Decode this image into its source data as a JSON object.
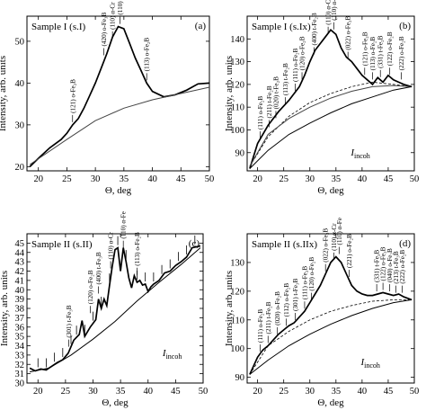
{
  "chart_data": [
    {
      "type": "line",
      "panel": "(a)",
      "title": "Sample I (s.I)",
      "xlabel": "Θ, deg",
      "ylabel": "Intensity, arb. units",
      "xlim": [
        18,
        50
      ],
      "ylim": [
        19,
        56
      ],
      "xticks": [
        20,
        25,
        30,
        35,
        40,
        45,
        50
      ],
      "yticks": [
        20,
        30,
        40,
        50
      ],
      "series": [
        {
          "role": "measured",
          "x": [
            18.5,
            20,
            22,
            24,
            25,
            26,
            27,
            28,
            29,
            30,
            31,
            32,
            33,
            34,
            35,
            36,
            37,
            38,
            39,
            40,
            42,
            44,
            46,
            48,
            50
          ],
          "y": [
            20,
            22,
            24.5,
            26.5,
            28,
            30,
            31.5,
            34,
            37,
            40,
            43.5,
            47,
            51,
            53.5,
            53,
            49.5,
            46,
            43,
            40,
            38,
            36.7,
            37.2,
            38.3,
            39.8,
            40
          ]
        },
        {
          "role": "background",
          "x": [
            18.5,
            25,
            30,
            35,
            40,
            45,
            50
          ],
          "y": [
            20.5,
            26.5,
            31,
            34,
            36,
            37.5,
            39
          ]
        }
      ],
      "annotations": [
        {
          "x": 26,
          "y": 30,
          "text": "(121) o-Fe₂B"
        },
        {
          "x": 31.5,
          "y": 46,
          "text": "(420) o-Fe₃B"
        },
        {
          "x": 33,
          "y": 50,
          "text": "(110) α-Cr"
        },
        {
          "x": 34.3,
          "y": 53.5,
          "text": "(110) α-Fe"
        },
        {
          "x": 39,
          "y": 40,
          "text": "(113) o-Fe₂B"
        }
      ]
    },
    {
      "type": "line",
      "panel": "(b)",
      "title": "Sample I (s.Ix)",
      "xlabel": "Θ, deg",
      "ylabel": "Intensity, arb. units",
      "xlim": [
        18,
        50
      ],
      "ylim": [
        82,
        150
      ],
      "xticks": [
        20,
        25,
        30,
        35,
        40,
        45,
        50
      ],
      "yticks": [
        90,
        100,
        110,
        120,
        130,
        140
      ],
      "incoh_label": "I",
      "incoh_sub": "incoh",
      "series": [
        {
          "role": "measured",
          "x": [
            18.5,
            20,
            22,
            24,
            26,
            28,
            29,
            30,
            31,
            32,
            33,
            34,
            35,
            36,
            37,
            38,
            39,
            40,
            41,
            42,
            43,
            44,
            45,
            46,
            47,
            48,
            49.5
          ],
          "y": [
            83,
            94,
            102,
            108,
            113,
            119,
            124,
            130,
            135,
            138,
            141,
            144,
            142,
            136,
            132,
            130,
            127,
            124,
            122,
            120,
            123,
            121,
            124,
            122,
            121,
            120,
            119
          ]
        },
        {
          "role": "coherent-model",
          "x": [
            18.5,
            22,
            26,
            30,
            34,
            38,
            42,
            46,
            49.5
          ],
          "y": [
            84,
            97,
            106,
            112,
            116,
            119,
            121,
            120,
            119
          ]
        },
        {
          "role": "background",
          "x": [
            18.5,
            22,
            26,
            30,
            34,
            38,
            42,
            46,
            49.5
          ],
          "y": [
            84,
            98,
            105,
            110,
            114,
            117,
            119,
            119.5,
            119
          ]
        },
        {
          "role": "incoherent",
          "x": [
            18.5,
            22,
            26,
            30,
            34,
            38,
            42,
            46,
            49.5
          ],
          "y": [
            83,
            91,
            98,
            103,
            107.5,
            111.5,
            114.5,
            117.5,
            119
          ]
        }
      ],
      "annotations": [
        {
          "x": 20.5,
          "y": 95,
          "text": "(111) o-Fe₂B"
        },
        {
          "x": 22.2,
          "y": 100,
          "text": "(211) t-Fe₂B"
        },
        {
          "x": 23.5,
          "y": 104,
          "text": "(020) t-Fe₂B"
        },
        {
          "x": 25.3,
          "y": 110,
          "text": "(113) t-Fe₂B"
        },
        {
          "x": 27.2,
          "y": 116,
          "text": "(111) o-Fe₂B"
        },
        {
          "x": 28.5,
          "y": 121,
          "text": "(120) o-Fe₂B"
        },
        {
          "x": 30.8,
          "y": 132,
          "text": "(400) t-Fe₂B"
        },
        {
          "x": 33.5,
          "y": 141,
          "text": "(110) α-Cr"
        },
        {
          "x": 34.6,
          "y": 143,
          "text": "(110) α-Fe"
        },
        {
          "x": 37.3,
          "y": 130,
          "text": "(022) o-Fe₂B"
        },
        {
          "x": 40.5,
          "y": 123,
          "text": "(121) o-Fe₂B"
        },
        {
          "x": 42,
          "y": 121,
          "text": "(113) o-Fe₂B"
        },
        {
          "x": 43.5,
          "y": 122,
          "text": "(331) t-Fe₂B"
        },
        {
          "x": 45.3,
          "y": 123,
          "text": "(122) o-Fe₂B"
        },
        {
          "x": 47.5,
          "y": 121,
          "text": "(222) o-Fe₂B"
        }
      ]
    },
    {
      "type": "line",
      "panel": "(c)",
      "title": "Sample II (s.II)",
      "xlabel": "Θ, deg",
      "ylabel": "Intensity, arb. units",
      "xlim": [
        18,
        50
      ],
      "ylim": [
        30,
        46
      ],
      "xticks": [
        20,
        25,
        30,
        35,
        40,
        45,
        50
      ],
      "yticks": [
        30,
        31,
        32,
        33,
        34,
        35,
        36,
        37,
        38,
        39,
        40,
        41,
        42,
        43,
        44,
        45,
        46
      ],
      "yticklabels": [
        30,
        31,
        32,
        33,
        34,
        35,
        36,
        37,
        38,
        39,
        40,
        41,
        42,
        43,
        44,
        45
      ],
      "incoh_label": "I",
      "incoh_sub": "incoh",
      "series": [
        {
          "role": "measured",
          "x": [
            18.5,
            19.5,
            20.5,
            21.5,
            22.5,
            23.5,
            24.5,
            25.5,
            26.5,
            27.5,
            28,
            28.5,
            29.5,
            30.5,
            31,
            31.5,
            32,
            32.5,
            33,
            33.5,
            34,
            34.5,
            35,
            35.5,
            36,
            36.5,
            37,
            37.5,
            38,
            38.5,
            39,
            39.5,
            40,
            40.5,
            41,
            42,
            43,
            44,
            45,
            46,
            47,
            48,
            49.5
          ],
          "y": [
            31.6,
            31.3,
            31.5,
            31.4,
            31.8,
            32.2,
            32.5,
            33.2,
            34.6,
            35.2,
            36.7,
            35,
            36,
            36.8,
            39,
            38,
            39,
            38.3,
            40.5,
            42.5,
            44.3,
            44.5,
            42,
            44.5,
            43,
            41.3,
            40.2,
            41.5,
            40.8,
            41,
            40.5,
            40.6,
            39.8,
            40.3,
            40.6,
            41,
            41.8,
            42,
            42.6,
            43,
            43.5,
            44.5,
            44.7
          ]
        },
        {
          "role": "incoherent",
          "x": [
            18.5,
            22,
            26,
            30,
            34,
            38,
            42,
            46,
            49.5
          ],
          "y": [
            31.2,
            31.6,
            33,
            34.7,
            36.6,
            38.8,
            40.8,
            42.7,
            44.5
          ]
        }
      ],
      "error_bars_at": [
        20,
        21.5,
        23,
        24.5,
        26,
        27,
        28.5,
        30,
        31.5,
        33,
        34.5,
        36,
        38,
        39.5,
        41,
        42.5,
        44,
        45.5,
        47,
        48.5
      ],
      "annotations": [
        {
          "x": 25.6,
          "y": 33.6,
          "text": "(301) t-Fe₃B"
        },
        {
          "x": 29.5,
          "y": 37.2,
          "text": "(120) o-Fe₂B"
        },
        {
          "x": 31,
          "y": 39.3,
          "text": "(400) t-Fe₃B"
        },
        {
          "x": 33.2,
          "y": 42,
          "text": "(110) α-Cr"
        },
        {
          "x": 35.5,
          "y": 44.2,
          "text": "(110) α-Fe"
        },
        {
          "x": 38,
          "y": 41.3,
          "text": "(113) o-Fe₂B"
        }
      ]
    },
    {
      "type": "line",
      "panel": "(d)",
      "title": "Sample II (s.IIx)",
      "xlabel": "Θ, deg",
      "ylabel": "Intensity, arb. units",
      "xlim": [
        18,
        50
      ],
      "ylim": [
        88,
        140
      ],
      "xticks": [
        20,
        25,
        30,
        35,
        40,
        45,
        50
      ],
      "yticks": [
        90,
        100,
        110,
        120,
        130
      ],
      "incoh_label": "I",
      "incoh_sub": "incoh",
      "series": [
        {
          "role": "measured",
          "x": [
            18.5,
            20,
            21,
            22,
            23,
            24,
            25,
            26,
            27,
            28,
            29,
            30,
            31,
            32,
            33,
            34,
            35,
            36,
            37,
            38,
            39,
            40,
            41,
            42,
            43,
            44,
            45,
            46,
            47,
            48,
            49.5
          ],
          "y": [
            91,
            97,
            99.5,
            101,
            103,
            105,
            106.5,
            108,
            109,
            111,
            113,
            116,
            119,
            122,
            126,
            130,
            132,
            130,
            126,
            122,
            120,
            119,
            118.5,
            118.5,
            119,
            119.5,
            119,
            118.5,
            119,
            118,
            117
          ]
        },
        {
          "role": "coherent-model",
          "x": [
            18.5,
            22,
            26,
            30,
            34,
            38,
            42,
            46,
            49.5
          ],
          "y": [
            91,
            101,
            106,
            110,
            113,
            115,
            116.5,
            117,
            117
          ]
        },
        {
          "role": "incoherent",
          "x": [
            18.5,
            22,
            26,
            30,
            34,
            38,
            42,
            46,
            49.5
          ],
          "y": [
            91,
            96,
            101,
            105,
            108.5,
            111.5,
            114,
            116,
            117
          ]
        }
      ],
      "annotations": [
        {
          "x": 20.5,
          "y": 98,
          "text": "(111) o-Fe₂B"
        },
        {
          "x": 22,
          "y": 101,
          "text": "(211) t-Fe₂B"
        },
        {
          "x": 23.8,
          "y": 104,
          "text": "(020) o-Fe₂B"
        },
        {
          "x": 25.5,
          "y": 107,
          "text": "(112) o-Fe₂B"
        },
        {
          "x": 27.2,
          "y": 109,
          "text": "(301) t-Fe₃B"
        },
        {
          "x": 29,
          "y": 113,
          "text": "(111) o-Fe₂B"
        },
        {
          "x": 30.3,
          "y": 116,
          "text": "(120) o-Fe₂B"
        },
        {
          "x": 33,
          "y": 126,
          "text": "(022) o-Fe₂B"
        },
        {
          "x": 34.6,
          "y": 130,
          "text": "(110) α-Cr"
        },
        {
          "x": 35.6,
          "y": 132,
          "text": "(110) α-Fe"
        },
        {
          "x": 37.5,
          "y": 124,
          "text": "(221) o-Fe₂B"
        },
        {
          "x": 42.8,
          "y": 119,
          "text": "(331) t-Fe₃B"
        },
        {
          "x": 44,
          "y": 119.5,
          "text": "(122) o-Fe₂B"
        },
        {
          "x": 45.3,
          "y": 119,
          "text": "(040) o-Fe₂B"
        },
        {
          "x": 46.5,
          "y": 118.5,
          "text": "(213) t-Fe₃B"
        },
        {
          "x": 47.7,
          "y": 118.5,
          "text": "(222) o-Fe₂B"
        }
      ]
    }
  ]
}
